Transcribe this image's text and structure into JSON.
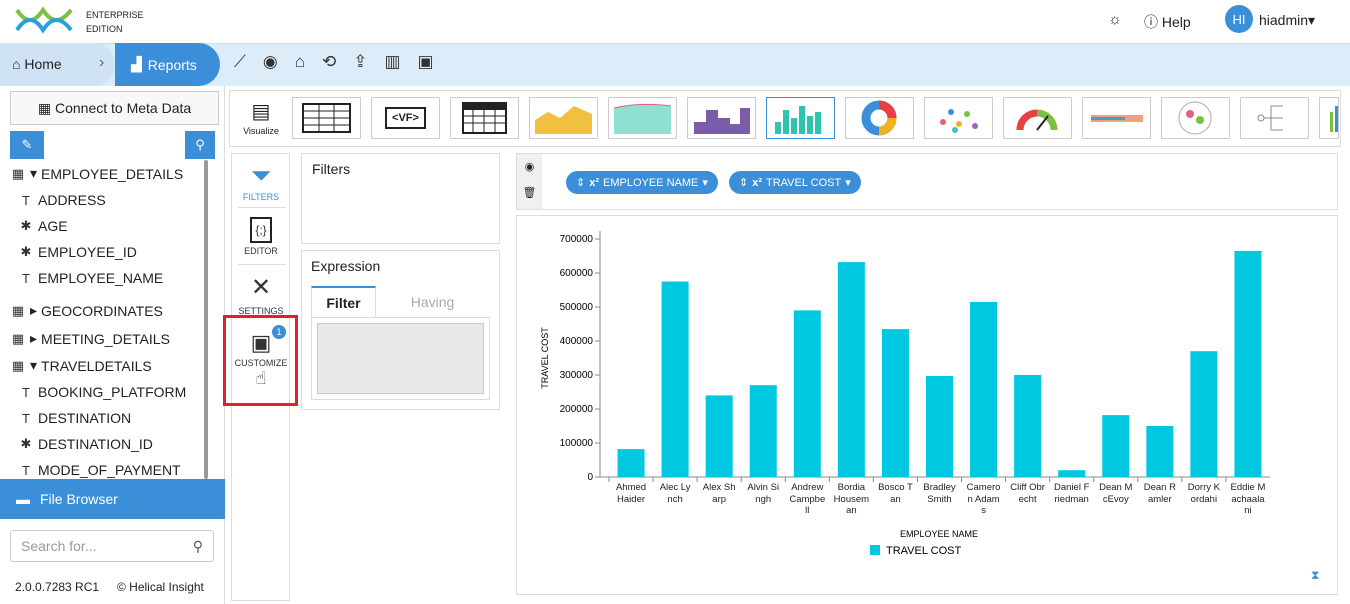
{
  "header": {
    "brand_line1": "ENTERPRISE",
    "brand_line2": "EDITION",
    "help": "Help",
    "avatar": "HI",
    "user": "hiadmin"
  },
  "breadcrumb": {
    "home": "Home",
    "current": "Reports"
  },
  "sidebar": {
    "connect": "Connect to Meta Data",
    "tree": [
      "EMPLOYEE_DETAILS",
      "ADDRESS",
      "AGE",
      "EMPLOYEE_ID",
      "EMPLOYEE_NAME",
      "GEOCORDINATES",
      "MEETING_DETAILS",
      "TRAVELDETAILS",
      "BOOKING_PLATFORM",
      "DESTINATION",
      "DESTINATION_ID",
      "MODE_OF_PAYMENT"
    ],
    "file_browser": "File Browser",
    "search_placeholder": "Search for...",
    "version": "2.0.0.7283 RC1",
    "copyright": "© Helical Insight"
  },
  "viz_strip": {
    "visualize": "Visualize",
    "vf": "<VF>"
  },
  "tabs": [
    {
      "label": "FILTERS"
    },
    {
      "label": "EDITOR"
    },
    {
      "label": "SETTINGS"
    },
    {
      "label": "CUSTOMIZE",
      "badge": 1
    }
  ],
  "filters": {
    "title": "Filters"
  },
  "expression": {
    "title": "Expression",
    "tabs": [
      "Filter",
      "Having"
    ]
  },
  "fields": [
    "EMPLOYEE NAME",
    "TRAVEL COST"
  ],
  "chart_data": {
    "type": "bar",
    "x_label": "EMPLOYEE NAME",
    "y_label": "TRAVEL COST",
    "categories": [
      "Ahmed Haider",
      "Alec Lynch",
      "Alex Sharp",
      "Alvin Singh",
      "Andrew Campbell",
      "Bordia Houseman",
      "Bosco Tan",
      "Bradley Smith",
      "Cameron Adams",
      "Cliff Obrecht",
      "Daniel Friedman",
      "Dean McEvoy",
      "Dean Ramler",
      "Dorry Kordahi",
      "Eddie Machaalani"
    ],
    "series": [
      {
        "name": "TRAVEL COST",
        "color": "#00c8e0",
        "values": [
          82000,
          575000,
          240000,
          270000,
          490000,
          632000,
          435000,
          297000,
          515000,
          300000,
          20000,
          182000,
          150000,
          370000,
          665000
        ]
      }
    ],
    "ylim": [
      0,
      700000
    ],
    "yticks": [
      0,
      100000,
      200000,
      300000,
      400000,
      500000,
      600000,
      700000
    ],
    "grid": false,
    "legend": "bottom"
  }
}
